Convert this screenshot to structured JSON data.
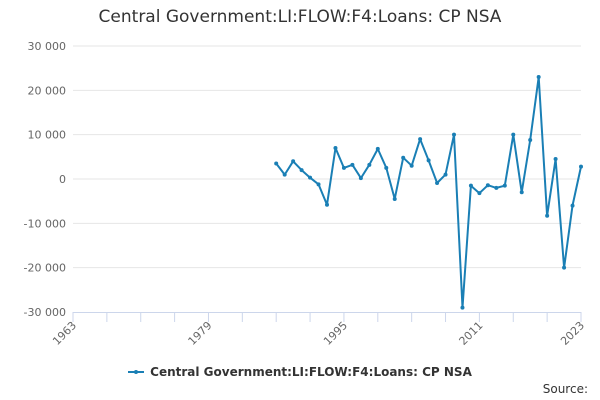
{
  "page": {
    "source_label": "Source:"
  },
  "chart_data": {
    "type": "line",
    "title": "Central Government:LI:FLOW:F4:Loans: CP NSA",
    "xlabel": "",
    "ylabel": "",
    "xlim": [
      1963,
      2023
    ],
    "ylim": [
      -30000,
      30000
    ],
    "x_ticks": [
      1963,
      1979,
      1995,
      2011,
      2023
    ],
    "y_ticks": [
      -30000,
      -20000,
      -10000,
      0,
      10000,
      20000,
      30000
    ],
    "y_tick_labels": [
      "-30 000",
      "-20 000",
      "-10 000",
      "0",
      "10 000",
      "20 000",
      "30 000"
    ],
    "grid": "horizontal",
    "legend_position": "bottom",
    "series": [
      {
        "name": "Central Government:LI:FLOW:F4:Loans: CP NSA",
        "color": "#1a7fb5",
        "x": [
          1987,
          1988,
          1989,
          1990,
          1991,
          1992,
          1993,
          1994,
          1995,
          1996,
          1997,
          1998,
          1999,
          2000,
          2001,
          2002,
          2003,
          2004,
          2005,
          2006,
          2007,
          2008,
          2009,
          2010,
          2011,
          2012,
          2013,
          2014,
          2015,
          2016,
          2017,
          2018,
          2019,
          2020,
          2021,
          2022,
          2023
        ],
        "values": [
          3500,
          1000,
          4000,
          2000,
          300,
          -1200,
          -5800,
          7000,
          2500,
          3200,
          200,
          3200,
          6800,
          2500,
          -4500,
          4800,
          3000,
          9000,
          4200,
          -900,
          1000,
          10000,
          -29000,
          -1500,
          -3200,
          -1400,
          -2000,
          -1500,
          10000,
          -3000,
          8800,
          23000,
          -8300,
          4500,
          -20000,
          -6000,
          2800
        ]
      }
    ]
  }
}
